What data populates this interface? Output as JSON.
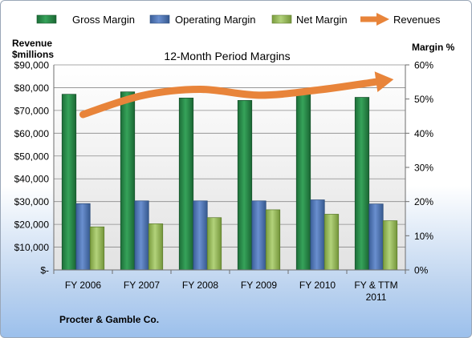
{
  "chart_data": {
    "type": "bar",
    "title": "12-Month Period Margins",
    "left_axis_label_line1": "Revenue",
    "left_axis_label_line2": "$millions",
    "right_axis_label": "Margin %",
    "footer": "Procter & Gamble Co.",
    "categories": [
      [
        "FY 2006"
      ],
      [
        "FY 2007"
      ],
      [
        "FY 2008"
      ],
      [
        "FY 2009"
      ],
      [
        "FY 2010"
      ],
      [
        "FY & TTM",
        "2011"
      ]
    ],
    "left_axis": {
      "min": 0,
      "max": 90000,
      "step": 10000,
      "ticks": [
        "$-",
        "$10,000",
        "$20,000",
        "$30,000",
        "$40,000",
        "$50,000",
        "$60,000",
        "$70,000",
        "$80,000",
        "$90,000"
      ]
    },
    "right_axis": {
      "min": 0,
      "max": 60,
      "step": 10,
      "ticks": [
        "0%",
        "10%",
        "20%",
        "30%",
        "40%",
        "50%",
        "60%"
      ]
    },
    "series": [
      {
        "name": "Gross Margin",
        "axis": "right",
        "unit": "%",
        "color": "#2a8a4a",
        "values": [
          51.4,
          52.1,
          50.3,
          49.6,
          52.0,
          50.5
        ]
      },
      {
        "name": "Operating Margin",
        "axis": "right",
        "unit": "%",
        "color": "#4f78b8",
        "values": [
          19.4,
          20.2,
          20.2,
          20.2,
          20.5,
          19.3
        ]
      },
      {
        "name": "Net Margin",
        "axis": "right",
        "unit": "%",
        "color": "#9bc05a",
        "values": [
          12.6,
          13.5,
          15.3,
          17.6,
          16.3,
          14.4
        ]
      },
      {
        "name": "Revenues",
        "axis": "left",
        "unit": "$millions",
        "type": "line-arrow",
        "color": "#e8843a",
        "values": [
          68222,
          76476,
          79257,
          76694,
          78938,
          82559
        ]
      }
    ],
    "legend": {
      "position": "top",
      "items": [
        "Gross Margin",
        "Operating Margin",
        "Net Margin",
        "Revenues"
      ]
    },
    "grid": true
  }
}
